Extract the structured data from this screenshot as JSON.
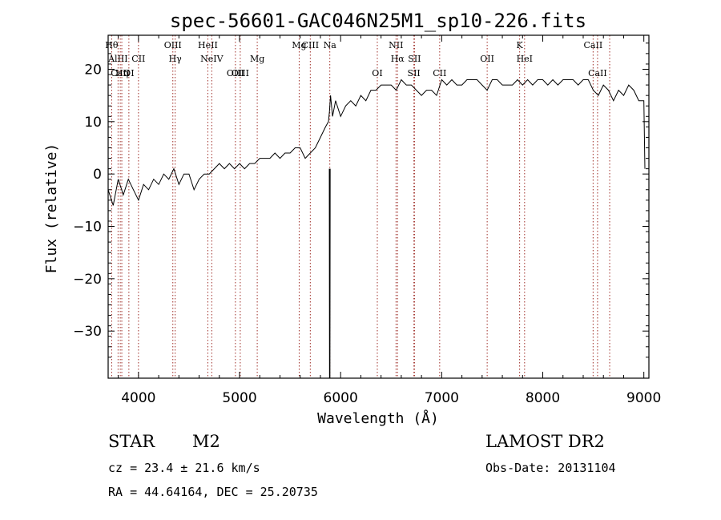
{
  "chart_data": {
    "type": "line",
    "title": "spec-56601-GAC046N25M1_sp10-226.fits",
    "xlabel": "Wavelength (Å)",
    "ylabel": "Flux (relative)",
    "xlim": [
      3700,
      9050
    ],
    "ylim": [
      -39,
      26.5
    ],
    "x_ticks": [
      4000,
      5000,
      6000,
      7000,
      8000,
      9000
    ],
    "y_ticks": [
      20,
      10,
      0,
      -10,
      -20,
      -30
    ],
    "grid": false,
    "legend": "none",
    "spectrum_color": "#000000",
    "line_marker_color": "#a0302a",
    "series": [
      {
        "x": [
          3700,
          3750,
          3800,
          3850,
          3900,
          3950,
          4000,
          4050,
          4100,
          4150,
          4200,
          4250,
          4300,
          4350,
          4400,
          4450,
          4500,
          4550,
          4600,
          4650,
          4700,
          4750,
          4800,
          4850,
          4900,
          4950,
          5000,
          5050,
          5100,
          5150,
          5200,
          5250,
          5300,
          5350,
          5400,
          5450,
          5500,
          5550,
          5600,
          5650,
          5700,
          5750,
          5800,
          5850,
          5880,
          5890,
          5900,
          5920,
          5950,
          6000,
          6050,
          6100,
          6150,
          6200,
          6250,
          6300,
          6350,
          6400,
          6450,
          6500,
          6550,
          6600,
          6650,
          6700,
          6750,
          6800,
          6850,
          6900,
          6950,
          7000,
          7050,
          7100,
          7150,
          7200,
          7250,
          7300,
          7350,
          7400,
          7450,
          7500,
          7550,
          7600,
          7650,
          7700,
          7750,
          7800,
          7850,
          7900,
          7950,
          8000,
          8050,
          8100,
          8150,
          8200,
          8250,
          8300,
          8350,
          8400,
          8450,
          8500,
          8550,
          8600,
          8650,
          8700,
          8750,
          8800,
          8850,
          8900,
          8950,
          9000,
          9010
        ],
        "y": [
          -3,
          -6,
          -1,
          -4,
          -1,
          -3,
          -5,
          -2,
          -3,
          -1,
          -2,
          0,
          -1,
          1,
          -2,
          0,
          0,
          -3,
          -1,
          0,
          0,
          1,
          2,
          1,
          2,
          1,
          2,
          1,
          2,
          2,
          3,
          3,
          3,
          4,
          3,
          4,
          4,
          5,
          5,
          3,
          4,
          5,
          7,
          9,
          10,
          12,
          15,
          11,
          14,
          11,
          13,
          14,
          13,
          15,
          14,
          16,
          16,
          17,
          17,
          17,
          16,
          18,
          17,
          17,
          16,
          15,
          16,
          16,
          15,
          18,
          17,
          18,
          17,
          17,
          18,
          18,
          18,
          17,
          16,
          18,
          18,
          17,
          17,
          17,
          18,
          17,
          18,
          17,
          18,
          18,
          17,
          18,
          17,
          18,
          18,
          18,
          17,
          18,
          18,
          16,
          15,
          17,
          16,
          14,
          16,
          15,
          17,
          16,
          14,
          14,
          1
        ]
      },
      {
        "x": [
          5890,
          5892,
          5895
        ],
        "y": [
          1,
          -39,
          1
        ]
      }
    ],
    "line_markers": [
      {
        "wavelength": 3735,
        "label": "Hθ",
        "row": 1
      },
      {
        "wavelength": 3798,
        "label": "AlIII",
        "row": 2
      },
      {
        "wavelength": 3820,
        "label": "CaII",
        "row": 3
      },
      {
        "wavelength": 3835,
        "label": "Hη",
        "row": 3
      },
      {
        "wavelength": 3905,
        "label": "OI",
        "row": 3
      },
      {
        "wavelength": 4000,
        "label": "CII",
        "row": 2
      },
      {
        "wavelength": 4340,
        "label": "OIII",
        "row": 1
      },
      {
        "wavelength": 4363,
        "label": "Hγ",
        "row": 2
      },
      {
        "wavelength": 4686,
        "label": "HeII",
        "row": 1
      },
      {
        "wavelength": 4725,
        "label": "NeIV",
        "row": 2
      },
      {
        "wavelength": 4959,
        "label": "OIII",
        "row": 3
      },
      {
        "wavelength": 5007,
        "label": "OIII",
        "row": 3
      },
      {
        "wavelength": 5175,
        "label": "Mg",
        "row": 2
      },
      {
        "wavelength": 5590,
        "label": "Mg",
        "row": 1
      },
      {
        "wavelength": 5700,
        "label": "CIII",
        "row": 1
      },
      {
        "wavelength": 5893,
        "label": "Na",
        "row": 1
      },
      {
        "wavelength": 6363,
        "label": "OI",
        "row": 3
      },
      {
        "wavelength": 6548,
        "label": "NII",
        "row": 1
      },
      {
        "wavelength": 6563,
        "label": "Hα",
        "row": 2
      },
      {
        "wavelength": 6731,
        "label": "SII",
        "row": 2
      },
      {
        "wavelength": 6725,
        "label": "SII",
        "row": 3
      },
      {
        "wavelength": 6980,
        "label": "CII",
        "row": 3
      },
      {
        "wavelength": 7450,
        "label": "OII",
        "row": 2
      },
      {
        "wavelength": 7771,
        "label": "K",
        "row": 1
      },
      {
        "wavelength": 7820,
        "label": "HeI",
        "row": 2
      },
      {
        "wavelength": 8498,
        "label": "CaII",
        "row": 1
      },
      {
        "wavelength": 8542,
        "label": "CaII",
        "row": 3
      },
      {
        "wavelength": 8662,
        "label": "",
        "row": 0
      }
    ]
  },
  "info": {
    "object_class": "STAR",
    "subclass": "M2",
    "survey": "LAMOST DR2",
    "redshift": "cz = 23.4 ± 21.6 km/s",
    "obs_date": "Obs-Date: 20131104",
    "coords": "RA =  44.64164, DEC =  25.20735"
  }
}
